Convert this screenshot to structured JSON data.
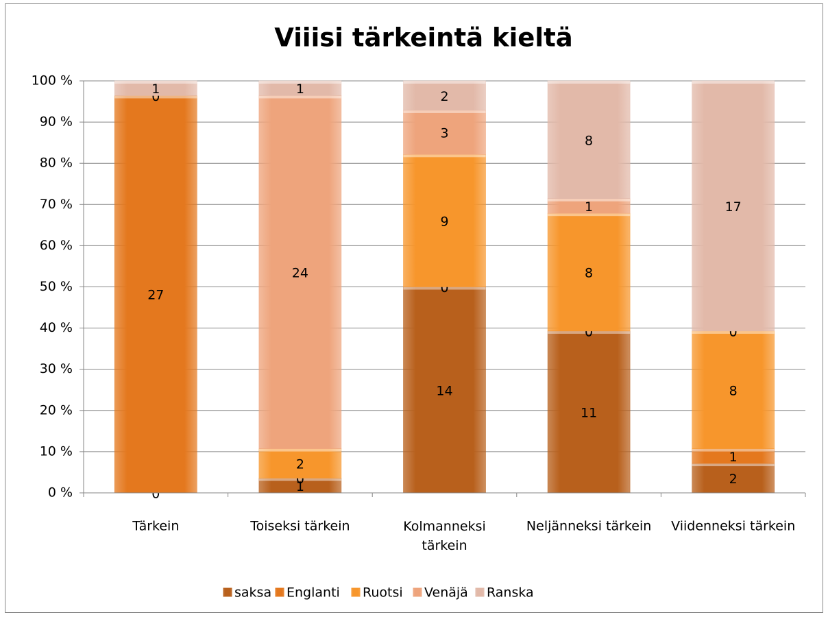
{
  "chart_data": {
    "type": "stacked_bar_percent",
    "title": "Viiisi tärkeintä kieltä",
    "categories": [
      "Tärkein",
      "Toiseksi tärkein",
      "Kolmanneksi tärkein",
      "Neljänneksi tärkein",
      "Viidenneksi tärkein"
    ],
    "series": [
      {
        "name": "saksa",
        "color": "#b8601c",
        "values": [
          0,
          1,
          14,
          11,
          2
        ]
      },
      {
        "name": "Englanti",
        "color": "#e4781e",
        "values": [
          27,
          0,
          0,
          0,
          1
        ]
      },
      {
        "name": "Ruotsi",
        "color": "#f7962c",
        "values": [
          0,
          2,
          9,
          8,
          8
        ]
      },
      {
        "name": "Venäjä",
        "color": "#eea47c",
        "values": [
          null,
          24,
          3,
          1,
          0
        ]
      },
      {
        "name": "Ranska",
        "color": "#e2b9a9",
        "values": [
          1,
          1,
          2,
          8,
          17
        ]
      }
    ],
    "ylim": [
      0,
      100
    ],
    "yticks": [
      {
        "value": 0,
        "label": "0 %"
      },
      {
        "value": 10,
        "label": "10 %"
      },
      {
        "value": 20,
        "label": "20 %"
      },
      {
        "value": 30,
        "label": "30 %"
      },
      {
        "value": 40,
        "label": "40 %"
      },
      {
        "value": 50,
        "label": "50 %"
      },
      {
        "value": 60,
        "label": "60 %"
      },
      {
        "value": 70,
        "label": "70 %"
      },
      {
        "value": 80,
        "label": "80 %"
      },
      {
        "value": 90,
        "label": "90 %"
      },
      {
        "value": 100,
        "label": "100 %"
      }
    ],
    "grid": true,
    "legend": "bottom"
  }
}
